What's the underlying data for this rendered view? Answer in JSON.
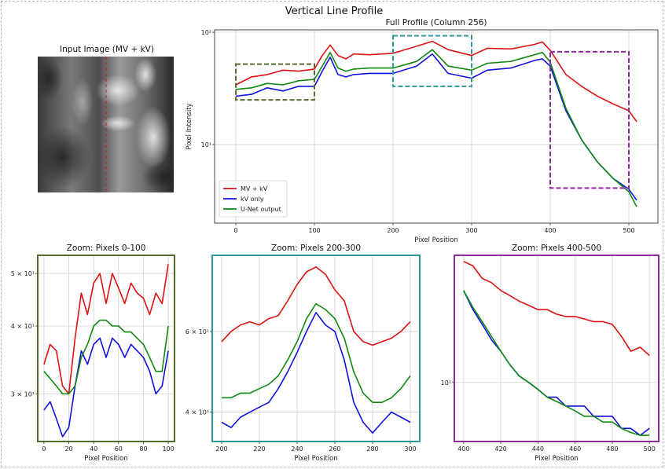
{
  "figure": {
    "title": "Vertical Line Profile"
  },
  "image_panel": {
    "title": "Input Image (MV + kV)"
  },
  "colors": {
    "mv_kv": "#dd1111",
    "kv": "#1111dd",
    "unet": "#118811",
    "zoom1": "#556b2f",
    "zoom2": "#2e9999",
    "zoom3": "#8b2a9b",
    "marker": "#e01010"
  },
  "chart_data": [
    {
      "id": "full",
      "type": "line",
      "title": "Full Profile (Column 256)",
      "xlabel": "Pixel Position",
      "ylabel": "Pixel Intensity",
      "xlim": [
        -27,
        537
      ],
      "ylim": [
        2.0,
        105
      ],
      "yscale": "log",
      "xticks": [
        0,
        100,
        200,
        300,
        400,
        500
      ],
      "yticks": [
        {
          "v": 100,
          "t": "10²"
        },
        {
          "v": 10,
          "t": "10¹"
        }
      ],
      "grid": true,
      "legend_position": "lower-left",
      "series": [
        {
          "name": "MV + kV",
          "color": "mv_kv",
          "x": [
            0,
            20,
            40,
            60,
            80,
            100,
            110,
            120,
            130,
            140,
            150,
            170,
            200,
            230,
            250,
            270,
            300,
            320,
            350,
            380,
            390,
            400,
            420,
            440,
            460,
            480,
            500,
            510
          ],
          "y": [
            34,
            40,
            42,
            46,
            45,
            47,
            62,
            77,
            62,
            58,
            64,
            63,
            65,
            75,
            83,
            70,
            62,
            72,
            71,
            78,
            82,
            69,
            42,
            33,
            27,
            23,
            20,
            16
          ]
        },
        {
          "name": "kV only",
          "color": "kv",
          "x": [
            0,
            20,
            40,
            60,
            80,
            100,
            110,
            120,
            130,
            140,
            150,
            170,
            200,
            230,
            250,
            270,
            300,
            320,
            350,
            380,
            390,
            400,
            420,
            440,
            460,
            480,
            500,
            510
          ],
          "y": [
            27,
            28,
            32,
            30,
            33,
            33,
            45,
            60,
            42,
            40,
            42,
            43,
            43,
            50,
            64,
            43,
            39,
            46,
            48,
            56,
            58,
            50,
            20,
            11,
            7,
            5,
            4,
            3.2
          ]
        },
        {
          "name": "U-Net output",
          "color": "unet",
          "x": [
            0,
            20,
            40,
            60,
            80,
            100,
            110,
            120,
            130,
            140,
            150,
            170,
            200,
            230,
            250,
            270,
            300,
            320,
            350,
            380,
            390,
            400,
            420,
            440,
            460,
            480,
            500,
            510
          ],
          "y": [
            31,
            32,
            35,
            34,
            37,
            38,
            50,
            66,
            48,
            45,
            47,
            48,
            48,
            55,
            70,
            50,
            46,
            53,
            55,
            63,
            66,
            54,
            21,
            11,
            7,
            5,
            3.8,
            2.8
          ]
        }
      ],
      "boxes": [
        {
          "x": [
            0,
            100
          ],
          "y": [
            25,
            52
          ],
          "color": "zoom1"
        },
        {
          "x": [
            200,
            300
          ],
          "y": [
            33,
            93
          ],
          "color": "zoom2"
        },
        {
          "x": [
            400,
            500
          ],
          "y": [
            4.1,
            67
          ],
          "color": "zoom3"
        }
      ]
    },
    {
      "id": "zoom1",
      "type": "line",
      "title": "Zoom: Pixels 0-100",
      "xlabel": "Pixel Position",
      "xlim": [
        -5,
        105
      ],
      "ylim": [
        24.5,
        54
      ],
      "yscale": "log",
      "xticks": [
        0,
        20,
        40,
        60,
        80,
        100
      ],
      "yticks": [
        {
          "v": 50,
          "t": "5 × 10¹"
        },
        {
          "v": 40,
          "t": "4 × 10¹"
        },
        {
          "v": 30,
          "t": "3 × 10¹"
        }
      ],
      "grid": true,
      "series": [
        {
          "name": "MV + kV",
          "color": "mv_kv",
          "x": [
            0,
            5,
            10,
            15,
            20,
            25,
            30,
            35,
            40,
            45,
            50,
            55,
            60,
            65,
            70,
            75,
            80,
            85,
            90,
            95,
            100
          ],
          "y": [
            34,
            37,
            36,
            31,
            30,
            38,
            46,
            42,
            48,
            50,
            44,
            50,
            47,
            44,
            48,
            46,
            45,
            42,
            46,
            44,
            52
          ]
        },
        {
          "name": "kV only",
          "color": "kv",
          "x": [
            0,
            5,
            10,
            15,
            20,
            25,
            30,
            35,
            40,
            45,
            50,
            55,
            60,
            65,
            70,
            75,
            80,
            85,
            90,
            95,
            100
          ],
          "y": [
            28,
            29,
            27,
            25,
            26,
            31,
            36,
            34,
            37,
            38,
            35,
            38,
            37,
            35,
            37,
            36,
            35,
            33,
            30,
            31,
            36
          ]
        },
        {
          "name": "U-Net output",
          "color": "unet",
          "x": [
            0,
            5,
            10,
            15,
            20,
            25,
            30,
            35,
            40,
            45,
            50,
            55,
            60,
            65,
            70,
            75,
            80,
            85,
            90,
            95,
            100
          ],
          "y": [
            33,
            32,
            31,
            30,
            30,
            31,
            35,
            37,
            40,
            41,
            41,
            40,
            40,
            39,
            39,
            38,
            37,
            35,
            33,
            33,
            40
          ]
        }
      ]
    },
    {
      "id": "zoom2",
      "type": "line",
      "title": "Zoom: Pixels 200-300",
      "xlabel": "Pixel Position",
      "xlim": [
        195,
        305
      ],
      "ylim": [
        34.5,
        88
      ],
      "yscale": "log",
      "xticks": [
        200,
        220,
        240,
        260,
        280,
        300
      ],
      "yticks": [
        {
          "v": 60,
          "t": "6 × 10¹"
        },
        {
          "v": 40,
          "t": "4 × 10¹"
        }
      ],
      "grid": true,
      "series": [
        {
          "name": "MV + kV",
          "color": "mv_kv",
          "x": [
            200,
            205,
            210,
            215,
            220,
            225,
            230,
            235,
            240,
            245,
            250,
            255,
            260,
            265,
            270,
            275,
            280,
            285,
            290,
            295,
            300
          ],
          "y": [
            57,
            60,
            62,
            63,
            62,
            64,
            65,
            70,
            76,
            81,
            83,
            80,
            74,
            70,
            60,
            57,
            56,
            57,
            58,
            60,
            63
          ]
        },
        {
          "name": "kV only",
          "color": "kv",
          "x": [
            200,
            205,
            210,
            215,
            220,
            225,
            230,
            235,
            240,
            245,
            250,
            255,
            260,
            265,
            270,
            275,
            280,
            285,
            290,
            295,
            300
          ],
          "y": [
            38,
            37,
            39,
            40,
            41,
            42,
            45,
            49,
            54,
            60,
            66,
            62,
            60,
            52,
            42,
            38,
            36,
            38,
            40,
            39,
            38
          ]
        },
        {
          "name": "U-Net output",
          "color": "unet",
          "x": [
            200,
            205,
            210,
            215,
            220,
            225,
            230,
            235,
            240,
            245,
            250,
            255,
            260,
            265,
            270,
            275,
            280,
            285,
            290,
            295,
            300
          ],
          "y": [
            43,
            43,
            44,
            44,
            45,
            46,
            48,
            52,
            57,
            64,
            69,
            67,
            64,
            58,
            49,
            44,
            42,
            42,
            43,
            45,
            48
          ]
        }
      ]
    },
    {
      "id": "zoom3",
      "type": "line",
      "title": "Zoom: Pixels 400-500",
      "xlabel": "Pixel Position",
      "xlim": [
        395,
        505
      ],
      "ylim": [
        4.1,
        68
      ],
      "yscale": "log",
      "xticks": [
        400,
        420,
        440,
        460,
        480,
        500
      ],
      "yticks": [
        {
          "v": 10,
          "t": "10¹"
        }
      ],
      "grid": true,
      "series": [
        {
          "name": "MV + kV",
          "color": "mv_kv",
          "x": [
            400,
            405,
            410,
            415,
            420,
            425,
            430,
            435,
            440,
            445,
            450,
            455,
            460,
            465,
            470,
            475,
            480,
            485,
            490,
            495,
            500
          ],
          "y": [
            62,
            58,
            48,
            45,
            40,
            37,
            34,
            32,
            30,
            30,
            28,
            27,
            27,
            26,
            25,
            25,
            24,
            20,
            16,
            17,
            15
          ]
        },
        {
          "name": "kV only",
          "color": "kv",
          "x": [
            400,
            405,
            410,
            415,
            420,
            425,
            430,
            435,
            440,
            445,
            450,
            455,
            460,
            465,
            470,
            475,
            480,
            485,
            490,
            495,
            500
          ],
          "y": [
            40,
            30,
            24,
            19,
            16,
            13,
            11,
            10,
            9,
            8,
            8,
            7,
            7,
            7,
            6,
            6,
            6,
            5,
            5,
            4.5,
            5
          ]
        },
        {
          "name": "U-Net output",
          "color": "unet",
          "x": [
            400,
            405,
            410,
            415,
            420,
            425,
            430,
            435,
            440,
            445,
            450,
            455,
            460,
            465,
            470,
            475,
            480,
            485,
            490,
            495,
            500
          ],
          "y": [
            40,
            31,
            25,
            20,
            16,
            13,
            11,
            10,
            9,
            8,
            7.5,
            7,
            6.5,
            6,
            6,
            5.5,
            5.5,
            5,
            4.7,
            4.5,
            4.5
          ]
        }
      ]
    }
  ]
}
